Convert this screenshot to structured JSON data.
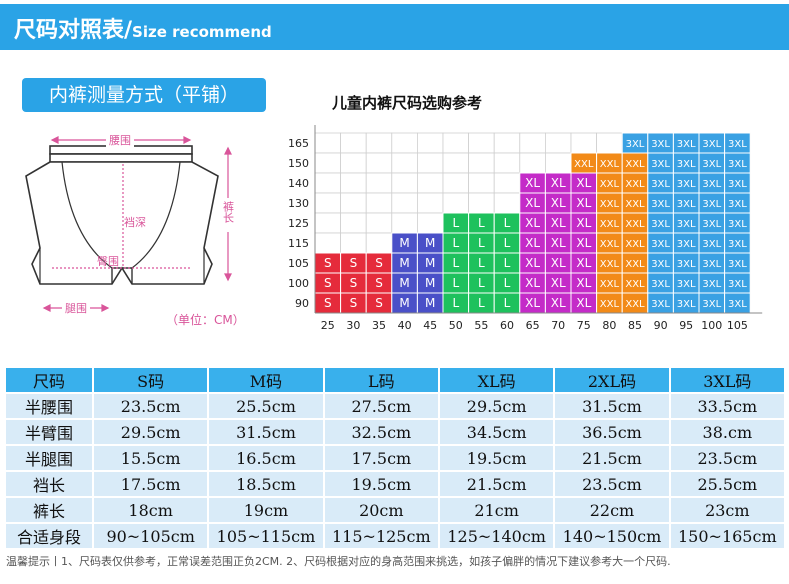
{
  "header": {
    "title": "尺码对照表/",
    "subtitle": "Size recommend"
  },
  "measure_label": "内裤测量方式（平铺）",
  "diagram": {
    "waist": "腰围",
    "rise": "裆深",
    "length": "裤长",
    "hip": "臀围",
    "leg": "腿围",
    "unit": "（单位：CM）"
  },
  "chart_data": {
    "type": "heatmap",
    "title": "儿童内裤尺码选购参考",
    "x": [
      25,
      30,
      35,
      40,
      45,
      50,
      55,
      60,
      65,
      70,
      75,
      80,
      85,
      90,
      95,
      100,
      105
    ],
    "y": [
      90,
      100,
      105,
      115,
      125,
      130,
      140,
      150,
      165
    ],
    "sizes": [
      {
        "size": "S",
        "x_from": 25,
        "x_to": 35,
        "y_top": 105,
        "color": "#e52b3b"
      },
      {
        "size": "M",
        "x_from": 40,
        "x_to": 45,
        "y_top": 115,
        "color": "#4a50c8"
      },
      {
        "size": "L",
        "x_from": 50,
        "x_to": 60,
        "y_top": 125,
        "color": "#1ec15d"
      },
      {
        "size": "XL",
        "x_from": 65,
        "x_to": 75,
        "y_top": 140,
        "color": "#c42bc8"
      },
      {
        "size": "XXL",
        "x_from": 80,
        "x_to": 85,
        "y_top": 150,
        "color": "#f28a18"
      },
      {
        "size": "3XL",
        "x_from": 90,
        "x_to": 105,
        "y_top": 165,
        "color": "#3aa1e3"
      }
    ],
    "special_cells": [
      {
        "x": 75,
        "y": 150,
        "size": "XXL"
      },
      {
        "x": 75,
        "y": 140,
        "size": "XL"
      },
      {
        "x": 85,
        "y": 165,
        "size": "3XL"
      }
    ],
    "grid": true
  },
  "table": {
    "headers": [
      "尺码",
      "S码",
      "M码",
      "L码",
      "XL码",
      "2XL码",
      "3XL码"
    ],
    "rows": [
      [
        "半腰围",
        "23.5cm",
        "25.5cm",
        "27.5cm",
        "29.5cm",
        "31.5cm",
        "33.5cm"
      ],
      [
        "半臂围",
        "29.5cm",
        "31.5cm",
        "32.5cm",
        "34.5cm",
        "36.5cm",
        "38.cm"
      ],
      [
        "半腿围",
        "15.5cm",
        "16.5cm",
        "17.5cm",
        "19.5cm",
        "21.5cm",
        "23.5cm"
      ],
      [
        "裆长",
        "17.5cm",
        "18.5cm",
        "19.5cm",
        "21.5cm",
        "23.5cm",
        "25.5cm"
      ],
      [
        "裤长",
        "18cm",
        "19cm",
        "20cm",
        "21cm",
        "22cm",
        "23cm"
      ],
      [
        "合适身段",
        "90~105cm",
        "105~115cm",
        "115~125cm",
        "125~140cm",
        "140~150cm",
        "150~165cm"
      ]
    ]
  },
  "note": "温馨提示丨1、尺码表仅供参考，正常误差范围正负2CM. 2、尺码根据对应的身高范围来挑选，如孩子偏胖的情况下建议参考大一个尺码."
}
